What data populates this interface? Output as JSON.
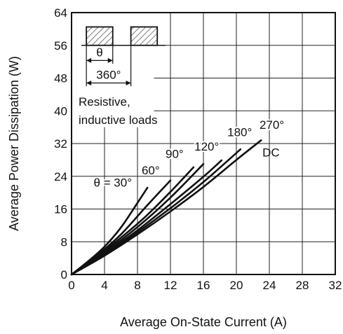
{
  "chart_data": {
    "type": "line",
    "title": "",
    "xlabel": "Average On-State Current  (A)",
    "ylabel": "Average Power Dissipation  (W)",
    "xlim": [
      0,
      32
    ],
    "ylim": [
      0,
      64
    ],
    "xticks": [
      "0",
      "4",
      "8",
      "12",
      "16",
      "20",
      "24",
      "28",
      "32"
    ],
    "yticks": [
      "0",
      "8",
      "16",
      "24",
      "32",
      "40",
      "48",
      "56",
      "64"
    ],
    "grid": true,
    "series": [
      {
        "name": "θ = 30°",
        "points": [
          [
            0,
            0
          ],
          [
            2,
            3.2
          ],
          [
            4,
            6.8
          ],
          [
            6,
            11.5
          ],
          [
            8,
            17.5
          ],
          [
            9.2,
            21.2
          ]
        ]
      },
      {
        "name": "60°",
        "points": [
          [
            0,
            0
          ],
          [
            3,
            4.5
          ],
          [
            6,
            9.8
          ],
          [
            9,
            16.5
          ],
          [
            12,
            23
          ]
        ]
      },
      {
        "name": "90°",
        "points": [
          [
            0,
            0
          ],
          [
            3,
            4.2
          ],
          [
            6,
            9.0
          ],
          [
            9,
            14.2
          ],
          [
            12,
            20.2
          ],
          [
            14.8,
            26.2
          ]
        ]
      },
      {
        "name": "120°",
        "points": [
          [
            0,
            0
          ],
          [
            4,
            5.4
          ],
          [
            8,
            11.6
          ],
          [
            12,
            18.8
          ],
          [
            16,
            27.0
          ]
        ]
      },
      {
        "name": "180°",
        "points": [
          [
            0,
            0
          ],
          [
            4,
            5.1
          ],
          [
            8,
            10.8
          ],
          [
            12,
            17.2
          ],
          [
            16,
            23.9
          ],
          [
            18.2,
            27.9
          ]
        ]
      },
      {
        "name": "270°",
        "points": [
          [
            0,
            0
          ],
          [
            4,
            4.9
          ],
          [
            8,
            10.3
          ],
          [
            12,
            16.2
          ],
          [
            16,
            22.6
          ],
          [
            20.5,
            30.6
          ]
        ]
      },
      {
        "name": "DC",
        "points": [
          [
            0,
            0
          ],
          [
            4,
            4.6
          ],
          [
            8,
            9.8
          ],
          [
            12,
            15.4
          ],
          [
            16,
            21.4
          ],
          [
            20,
            28.0
          ],
          [
            23,
            32.8
          ]
        ]
      }
    ],
    "annotations": {
      "theta_symbol": "θ",
      "period": "360°",
      "load_line1": "Resistive,",
      "load_line2": "inductive loads"
    }
  }
}
